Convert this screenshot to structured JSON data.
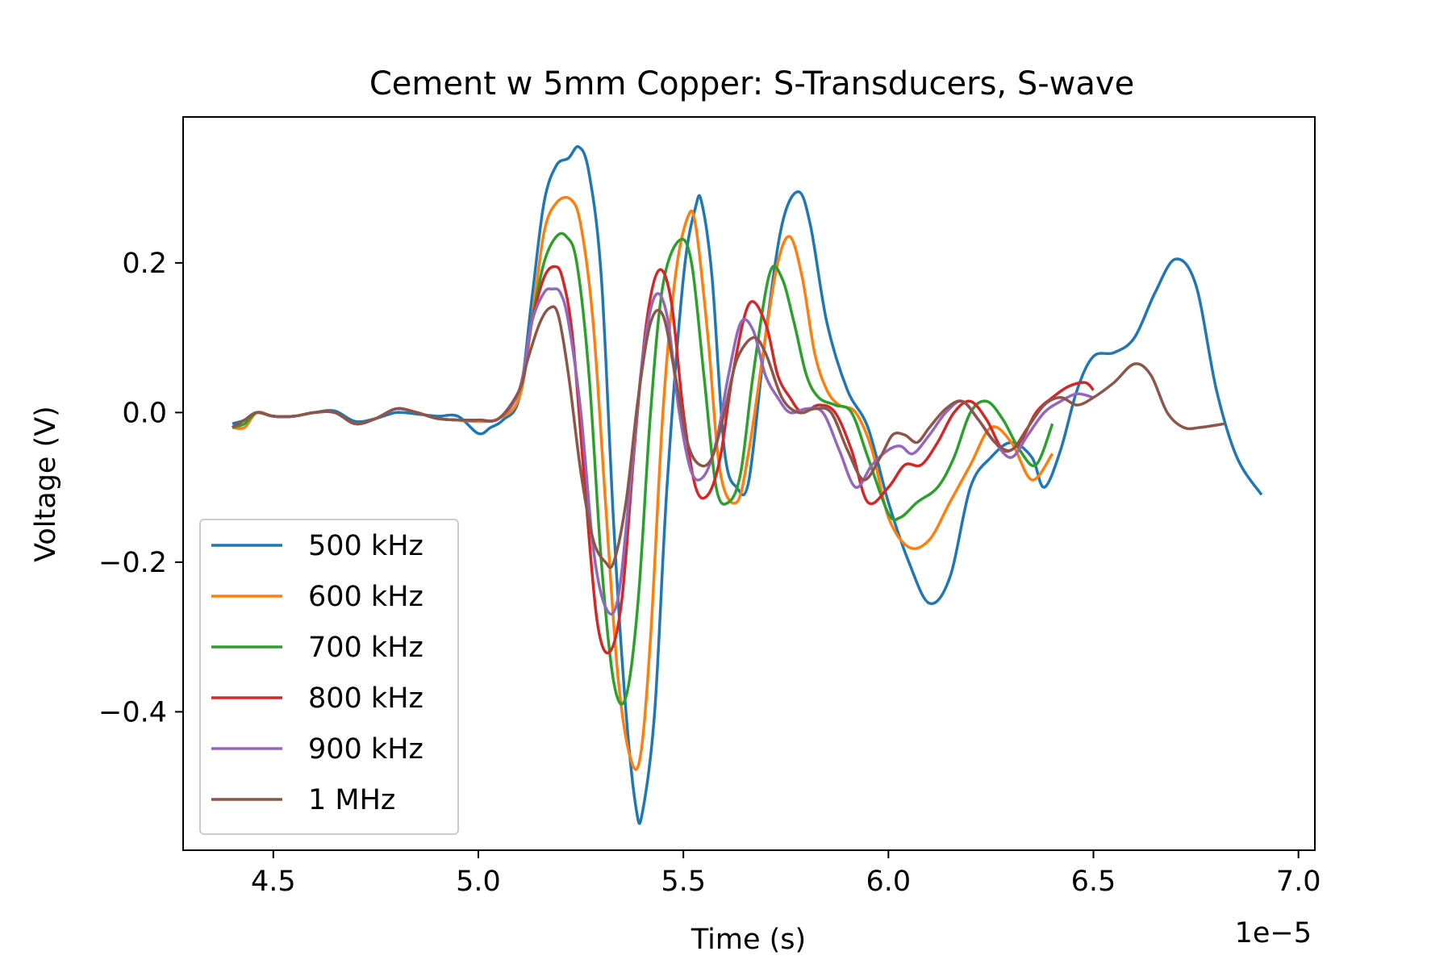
{
  "chart_data": {
    "type": "line",
    "title": "Cement w 5mm Copper: S-Transducers, S-wave",
    "xlabel": "Time (s)",
    "ylabel": "Voltage (V)",
    "x_offset_label": "1e−5",
    "xlim": [
      4.28,
      7.04
    ],
    "ylim": [
      -0.585,
      0.395
    ],
    "x_ticks": [
      4.5,
      5.0,
      5.5,
      6.0,
      6.5,
      7.0
    ],
    "x_tick_labels": [
      "4.5",
      "5.0",
      "5.5",
      "6.0",
      "6.5",
      "7.0"
    ],
    "y_ticks": [
      0.2,
      0.0,
      -0.2,
      -0.4
    ],
    "y_tick_labels": [
      "0.2",
      "0.0",
      "−0.2",
      "−0.4"
    ],
    "grid": false,
    "legend_position": "lower-left",
    "series": [
      {
        "name": "500 kHz",
        "color": "#1f77b4",
        "x": [
          4.4,
          4.43,
          4.46,
          4.5,
          4.55,
          4.6,
          4.65,
          4.7,
          4.75,
          4.8,
          4.85,
          4.9,
          4.95,
          5.0,
          5.03,
          5.06,
          5.1,
          5.13,
          5.16,
          5.19,
          5.22,
          5.245,
          5.27,
          5.3,
          5.33,
          5.36,
          5.385,
          5.4,
          5.43,
          5.46,
          5.5,
          5.53,
          5.545,
          5.57,
          5.6,
          5.63,
          5.66,
          5.7,
          5.74,
          5.78,
          5.81,
          5.85,
          5.9,
          5.95,
          6.0,
          6.05,
          6.1,
          6.15,
          6.2,
          6.25,
          6.3,
          6.35,
          6.38,
          6.42,
          6.46,
          6.5,
          6.55,
          6.6,
          6.65,
          6.7,
          6.75,
          6.8,
          6.85,
          6.91
        ],
        "y": [
          -0.015,
          -0.01,
          0.0,
          -0.005,
          -0.005,
          0.0,
          0.002,
          -0.012,
          -0.008,
          0.0,
          -0.002,
          -0.005,
          -0.005,
          -0.028,
          -0.02,
          -0.01,
          0.02,
          0.15,
          0.28,
          0.33,
          0.34,
          0.355,
          0.32,
          0.18,
          -0.15,
          -0.4,
          -0.53,
          -0.535,
          -0.4,
          -0.1,
          0.18,
          0.275,
          0.28,
          0.18,
          -0.05,
          -0.1,
          -0.09,
          0.1,
          0.25,
          0.295,
          0.25,
          0.12,
          0.03,
          -0.02,
          -0.12,
          -0.2,
          -0.255,
          -0.22,
          -0.1,
          -0.06,
          -0.04,
          -0.06,
          -0.1,
          -0.05,
          0.03,
          0.075,
          0.08,
          0.1,
          0.16,
          0.205,
          0.17,
          0.03,
          -0.06,
          -0.11
        ]
      },
      {
        "name": "600 kHz",
        "color": "#ff7f0e",
        "x": [
          4.4,
          4.43,
          4.46,
          4.5,
          4.55,
          4.6,
          4.65,
          4.7,
          4.75,
          4.8,
          4.85,
          4.9,
          4.95,
          5.0,
          5.05,
          5.1,
          5.13,
          5.16,
          5.19,
          5.225,
          5.25,
          5.28,
          5.31,
          5.34,
          5.37,
          5.395,
          5.42,
          5.45,
          5.48,
          5.51,
          5.53,
          5.56,
          5.59,
          5.63,
          5.66,
          5.7,
          5.73,
          5.76,
          5.79,
          5.82,
          5.85,
          5.88,
          5.92,
          5.96,
          6.0,
          6.05,
          6.1,
          6.15,
          6.2,
          6.25,
          6.3,
          6.35,
          6.4
        ],
        "y": [
          -0.02,
          -0.02,
          0.0,
          -0.005,
          -0.005,
          0.0,
          0.0,
          -0.015,
          -0.008,
          0.005,
          0.0,
          -0.008,
          -0.01,
          -0.012,
          -0.008,
          0.02,
          0.12,
          0.24,
          0.28,
          0.285,
          0.25,
          0.12,
          -0.12,
          -0.35,
          -0.46,
          -0.46,
          -0.3,
          0.0,
          0.18,
          0.26,
          0.25,
          0.1,
          -0.08,
          -0.12,
          -0.05,
          0.1,
          0.2,
          0.235,
          0.18,
          0.08,
          0.03,
          0.01,
          0.0,
          -0.05,
          -0.14,
          -0.18,
          -0.17,
          -0.12,
          -0.07,
          -0.02,
          -0.04,
          -0.09,
          -0.055
        ]
      },
      {
        "name": "700 kHz",
        "color": "#2ca02c",
        "x": [
          4.4,
          4.43,
          4.46,
          4.5,
          4.55,
          4.6,
          4.65,
          4.7,
          4.75,
          4.8,
          4.85,
          4.9,
          4.95,
          5.0,
          5.05,
          5.1,
          5.13,
          5.16,
          5.19,
          5.215,
          5.24,
          5.27,
          5.3,
          5.33,
          5.36,
          5.39,
          5.42,
          5.45,
          5.49,
          5.52,
          5.55,
          5.58,
          5.61,
          5.64,
          5.67,
          5.71,
          5.74,
          5.77,
          5.8,
          5.83,
          5.87,
          5.91,
          5.95,
          6.0,
          6.03,
          6.07,
          6.12,
          6.16,
          6.2,
          6.24,
          6.28,
          6.32,
          6.36,
          6.4
        ],
        "y": [
          -0.02,
          -0.015,
          0.0,
          -0.005,
          -0.005,
          0.0,
          0.0,
          -0.015,
          -0.008,
          0.005,
          0.0,
          -0.008,
          -0.01,
          -0.01,
          -0.008,
          0.03,
          0.12,
          0.2,
          0.235,
          0.235,
          0.2,
          0.05,
          -0.2,
          -0.36,
          -0.38,
          -0.25,
          0.0,
          0.17,
          0.23,
          0.2,
          0.05,
          -0.1,
          -0.12,
          -0.08,
          0.05,
          0.185,
          0.18,
          0.12,
          0.05,
          0.02,
          0.01,
          0.0,
          -0.06,
          -0.135,
          -0.14,
          -0.12,
          -0.1,
          -0.06,
          0.0,
          0.015,
          -0.01,
          -0.05,
          -0.07,
          -0.015
        ]
      },
      {
        "name": "800 kHz",
        "color": "#d62728",
        "x": [
          4.4,
          4.43,
          4.46,
          4.5,
          4.55,
          4.6,
          4.65,
          4.7,
          4.75,
          4.8,
          4.85,
          4.9,
          4.95,
          5.0,
          5.05,
          5.1,
          5.13,
          5.16,
          5.185,
          5.205,
          5.23,
          5.26,
          5.29,
          5.32,
          5.35,
          5.38,
          5.41,
          5.44,
          5.47,
          5.5,
          5.53,
          5.56,
          5.59,
          5.62,
          5.66,
          5.7,
          5.73,
          5.76,
          5.79,
          5.83,
          5.87,
          5.91,
          5.95,
          6.0,
          6.04,
          6.08,
          6.12,
          6.16,
          6.2,
          6.24,
          6.28,
          6.32,
          6.36,
          6.4,
          6.44,
          6.48,
          6.5
        ],
        "y": [
          -0.02,
          -0.01,
          0.0,
          -0.005,
          -0.005,
          0.0,
          0.0,
          -0.015,
          -0.008,
          0.005,
          0.0,
          -0.008,
          -0.01,
          -0.01,
          -0.008,
          0.03,
          0.12,
          0.18,
          0.195,
          0.18,
          0.1,
          -0.1,
          -0.28,
          -0.32,
          -0.25,
          -0.05,
          0.12,
          0.19,
          0.15,
          0.0,
          -0.1,
          -0.11,
          -0.06,
          0.05,
          0.145,
          0.12,
          0.05,
          0.02,
          0.0,
          0.01,
          0.0,
          -0.05,
          -0.12,
          -0.1,
          -0.07,
          -0.07,
          -0.04,
          0.0,
          0.015,
          -0.01,
          -0.05,
          -0.04,
          0.0,
          0.02,
          0.035,
          0.04,
          0.03
        ]
      },
      {
        "name": "900 kHz",
        "color": "#9467bd",
        "x": [
          4.4,
          4.43,
          4.46,
          4.5,
          4.55,
          4.6,
          4.65,
          4.7,
          4.75,
          4.8,
          4.85,
          4.9,
          4.95,
          5.0,
          5.05,
          5.1,
          5.13,
          5.16,
          5.18,
          5.2,
          5.22,
          5.25,
          5.28,
          5.31,
          5.34,
          5.37,
          5.4,
          5.43,
          5.46,
          5.49,
          5.52,
          5.55,
          5.58,
          5.61,
          5.64,
          5.67,
          5.7,
          5.73,
          5.76,
          5.8,
          5.84,
          5.88,
          5.92,
          5.96,
          6.0,
          6.03,
          6.06,
          6.1,
          6.14,
          6.18,
          6.22,
          6.26,
          6.3,
          6.34,
          6.38,
          6.42,
          6.46,
          6.5
        ],
        "y": [
          -0.02,
          -0.01,
          0.0,
          -0.005,
          -0.005,
          0.0,
          0.0,
          -0.015,
          -0.008,
          0.005,
          0.0,
          -0.008,
          -0.01,
          -0.01,
          -0.008,
          0.03,
          0.12,
          0.16,
          0.165,
          0.16,
          0.12,
          0.0,
          -0.18,
          -0.26,
          -0.25,
          -0.1,
          0.07,
          0.155,
          0.13,
          0.0,
          -0.08,
          -0.085,
          -0.04,
          0.05,
          0.12,
          0.11,
          0.05,
          0.02,
          0.0,
          0.005,
          0.0,
          -0.05,
          -0.1,
          -0.07,
          -0.05,
          -0.045,
          -0.055,
          -0.03,
          0.0,
          0.015,
          -0.01,
          -0.04,
          -0.06,
          -0.03,
          0.0,
          0.015,
          0.025,
          0.02
        ]
      },
      {
        "name": "1 MHz",
        "color": "#8c564b",
        "x": [
          4.4,
          4.43,
          4.46,
          4.5,
          4.55,
          4.6,
          4.65,
          4.7,
          4.75,
          4.8,
          4.85,
          4.9,
          4.95,
          5.0,
          5.05,
          5.1,
          5.12,
          5.15,
          5.175,
          5.195,
          5.22,
          5.25,
          5.28,
          5.31,
          5.33,
          5.36,
          5.39,
          5.42,
          5.45,
          5.48,
          5.51,
          5.54,
          5.57,
          5.6,
          5.63,
          5.67,
          5.7,
          5.74,
          5.78,
          5.82,
          5.86,
          5.9,
          5.94,
          5.98,
          6.01,
          6.04,
          6.07,
          6.1,
          6.14,
          6.18,
          6.22,
          6.26,
          6.3,
          6.34,
          6.38,
          6.42,
          6.46,
          6.5,
          6.55,
          6.6,
          6.64,
          6.68,
          6.72,
          6.76,
          6.82
        ],
        "y": [
          -0.02,
          -0.01,
          0.0,
          -0.005,
          -0.005,
          0.0,
          0.0,
          -0.015,
          -0.008,
          0.005,
          0.0,
          -0.008,
          -0.01,
          -0.01,
          -0.008,
          0.03,
          0.07,
          0.12,
          0.14,
          0.13,
          0.05,
          -0.08,
          -0.17,
          -0.2,
          -0.2,
          -0.12,
          0.02,
          0.12,
          0.13,
          0.05,
          -0.04,
          -0.07,
          -0.06,
          0.0,
          0.07,
          0.1,
          0.08,
          0.02,
          0.0,
          0.005,
          0.0,
          -0.05,
          -0.09,
          -0.06,
          -0.03,
          -0.03,
          -0.04,
          -0.02,
          0.005,
          0.015,
          -0.01,
          -0.04,
          -0.05,
          -0.02,
          0.01,
          0.02,
          0.01,
          0.02,
          0.04,
          0.065,
          0.05,
          0.0,
          -0.02,
          -0.02,
          -0.015
        ]
      }
    ]
  }
}
